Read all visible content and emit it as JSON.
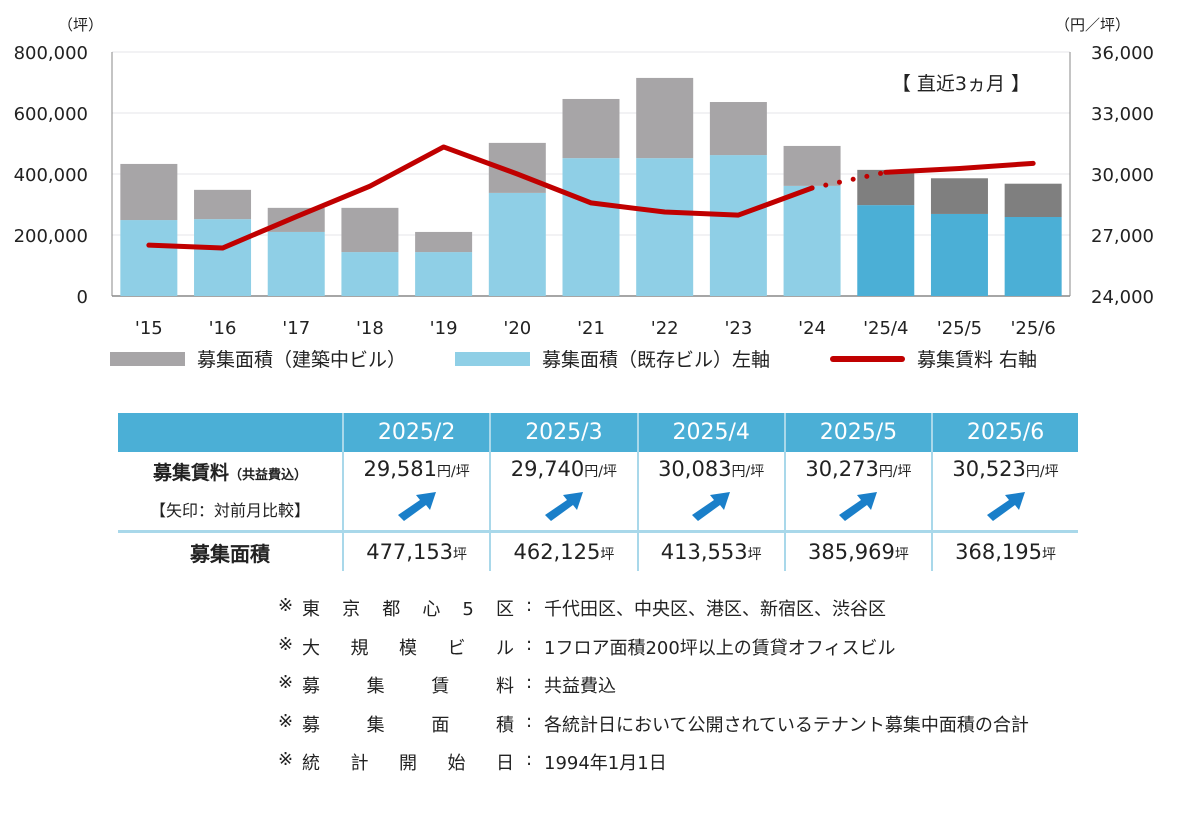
{
  "chart_data": {
    "type": "bar",
    "stacked": true,
    "categories": [
      "'15",
      "'16",
      "'17",
      "'18",
      "'19",
      "'20",
      "'21",
      "'22",
      "'23",
      "'24",
      "'25/4",
      "'25/5",
      "'25/6"
    ],
    "series": [
      {
        "name": "募集面積（既存ビル）左軸",
        "axis": "left",
        "type": "bar",
        "color": "#8fcfe6",
        "recent_color": "#4bafd6",
        "values": [
          249000,
          252000,
          210000,
          144000,
          144000,
          338000,
          452000,
          452000,
          462000,
          361000,
          298000,
          269000,
          259000
        ]
      },
      {
        "name": "募集面積（建築中ビル）",
        "axis": "left",
        "type": "bar",
        "color": "#a7a5a7",
        "recent_color": "#7f7f7f",
        "values": [
          184000,
          96000,
          79000,
          145000,
          66000,
          164000,
          194000,
          263000,
          174000,
          131000,
          115553,
          116969,
          109195
        ]
      },
      {
        "name": "募集賃料 右軸",
        "axis": "right",
        "type": "line",
        "color": "#c00000",
        "values": [
          26500,
          26360,
          27900,
          29400,
          31330,
          30000,
          28580,
          28130,
          27980,
          29310,
          30083,
          30273,
          30523
        ]
      }
    ],
    "left_axis": {
      "unit": "（坪）",
      "range": [
        0,
        800000
      ],
      "ticks": [
        "0",
        "200,000",
        "400,000",
        "600,000",
        "800,000"
      ]
    },
    "right_axis": {
      "unit": "（円／坪）",
      "range": [
        24000,
        36000
      ],
      "ticks": [
        "24,000",
        "27,000",
        "30,000",
        "33,000",
        "36,000"
      ]
    },
    "annotation": "【 直近3ヵ月 】",
    "grid": true,
    "legend_placement": "bottom"
  },
  "legend": [
    "募集面積（建築中ビル）",
    "募集面積（既存ビル）左軸",
    "募集賃料 右軸"
  ],
  "table": {
    "headers": [
      "2025/2",
      "2025/3",
      "2025/4",
      "2025/5",
      "2025/6"
    ],
    "rent_label": "募集賃料",
    "rent_label_sub": "（共益費込）",
    "rent_note": "【矢印：対前月比較】",
    "rent_unit": "円/坪",
    "rents": [
      "29,581",
      "29,740",
      "30,083",
      "30,273",
      "30,523"
    ],
    "arrows": [
      "up-right-arrow",
      "up-right-arrow",
      "up-right-arrow",
      "up-right-arrow",
      "up-right-arrow"
    ],
    "area_label": "募集面積",
    "area_unit": "坪",
    "areas": [
      "477,153",
      "462,125",
      "413,553",
      "385,969",
      "368,195"
    ],
    "arrow_color": "#1a7fc9"
  },
  "notes": [
    {
      "mark": "※",
      "key": "東京都心5区",
      "value": "千代田区、中央区、港区、新宿区、渋谷区"
    },
    {
      "mark": "※",
      "key": "大規模ビル",
      "value": "1フロア面積200坪以上の賃貸オフィスビル"
    },
    {
      "mark": "※",
      "key": "募集賃料",
      "value": "共益費込"
    },
    {
      "mark": "※",
      "key": "募集面積",
      "value": "各統計日において公開されているテナント募集中面積の合計"
    },
    {
      "mark": "※",
      "key": "統計開始日",
      "value": "1994年1月1日"
    }
  ]
}
